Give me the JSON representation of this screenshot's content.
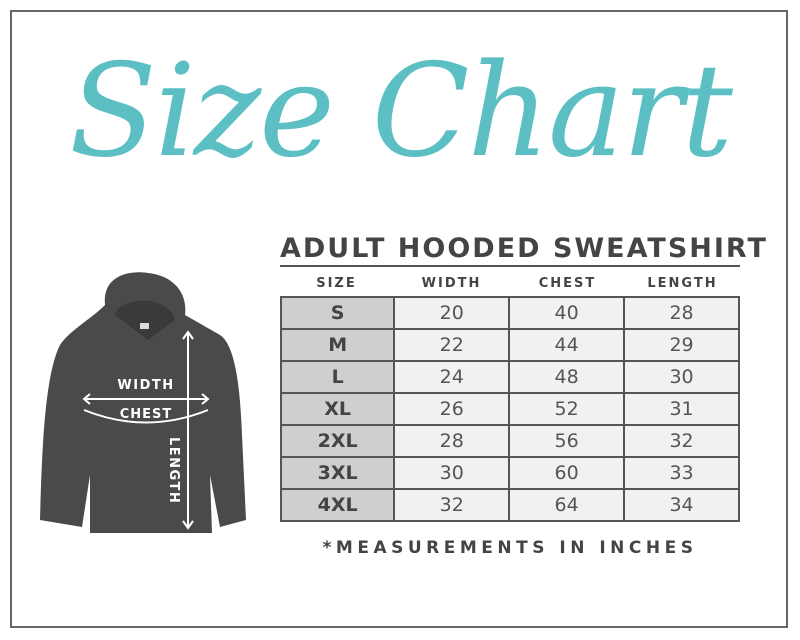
{
  "title": "Size Chart",
  "subtitle": "ADULT HOODED SWEATSHIRT",
  "columns": [
    "SIZE",
    "WIDTH",
    "CHEST",
    "LENGTH"
  ],
  "rows": [
    [
      "S",
      "20",
      "40",
      "28"
    ],
    [
      "M",
      "22",
      "44",
      "29"
    ],
    [
      "L",
      "24",
      "48",
      "30"
    ],
    [
      "XL",
      "26",
      "52",
      "31"
    ],
    [
      "2XL",
      "28",
      "56",
      "32"
    ],
    [
      "3XL",
      "30",
      "60",
      "33"
    ],
    [
      "4XL",
      "32",
      "64",
      "34"
    ]
  ],
  "footnote": "*MEASUREMENTS IN INCHES",
  "diagram": {
    "width_label": "WIDTH",
    "chest_label": "CHEST",
    "length_label": "LENGTH"
  },
  "colors": {
    "title": "#5bbfc4",
    "hoodie": "#4a4a4a",
    "size_cell": "#cfcfcf",
    "value_cell": "#f1f1f1"
  }
}
